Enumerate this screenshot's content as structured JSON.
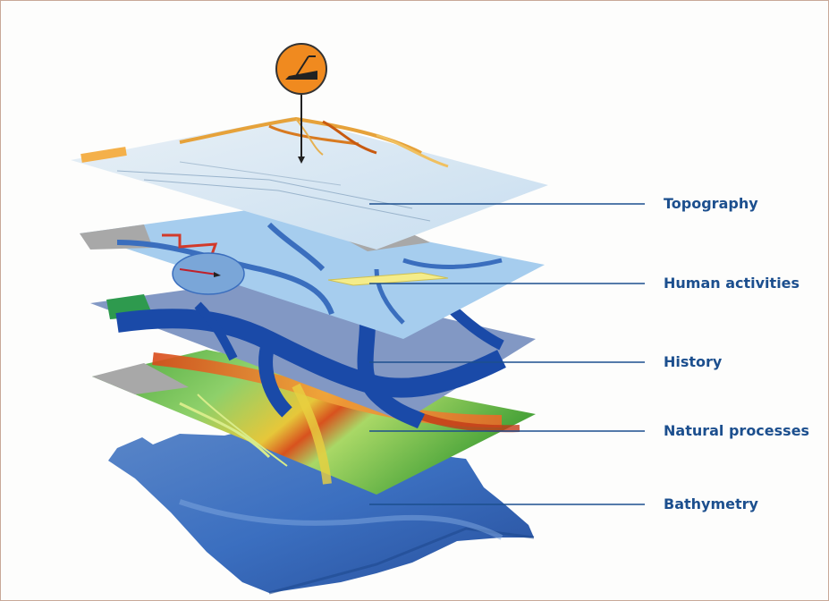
{
  "layers": [
    {
      "id": "topography",
      "label": "Topography"
    },
    {
      "id": "human-activities",
      "label": "Human activities"
    },
    {
      "id": "history",
      "label": "History"
    },
    {
      "id": "natural-processes",
      "label": "Natural processes"
    },
    {
      "id": "bathymetry",
      "label": "Bathymetry"
    }
  ],
  "colors": {
    "leader_line": "#1c4f8e",
    "label_text": "#1c4f8e",
    "marker_fill": "#f08a1f",
    "frame_border": "#c8a898"
  },
  "icons": {
    "marker": "depth-gauge-pin-icon"
  }
}
